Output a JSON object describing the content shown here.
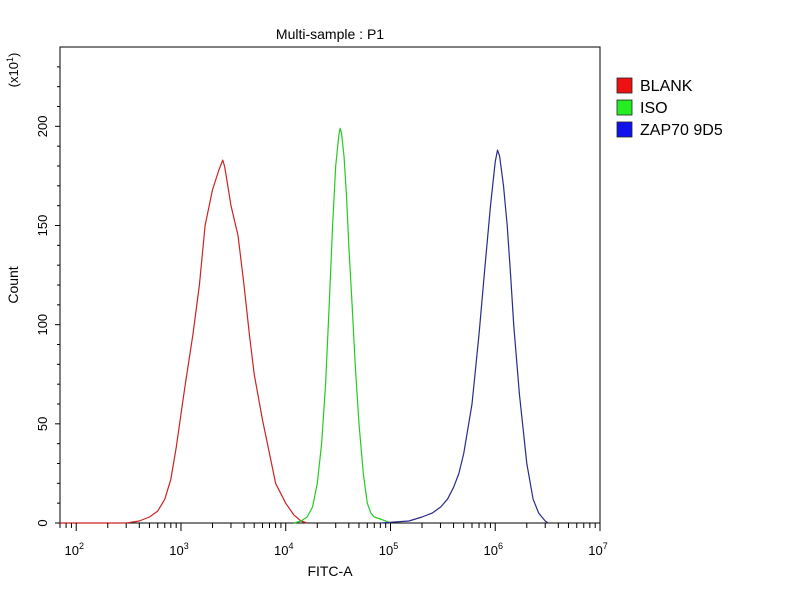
{
  "chart_data": {
    "type": "line",
    "title": "Multi-sample : P1",
    "xlabel": "FITC-A",
    "ylabel": "Count",
    "y_multiplier_label": "(x10",
    "y_multiplier_exp": "1",
    "y_multiplier_close": ")",
    "x_scale": "log",
    "xlim": [
      70,
      10000000
    ],
    "ylim": [
      0,
      240
    ],
    "x_ticks": [
      {
        "base": "10",
        "exp": "2",
        "value": 100
      },
      {
        "base": "10",
        "exp": "3",
        "value": 1000
      },
      {
        "base": "10",
        "exp": "4",
        "value": 10000
      },
      {
        "base": "10",
        "exp": "5",
        "value": 100000
      },
      {
        "base": "10",
        "exp": "6",
        "value": 1000000
      },
      {
        "base": "10",
        "exp": "7",
        "value": 10000000
      }
    ],
    "y_ticks": [
      "0",
      "50",
      "100",
      "150",
      "200"
    ],
    "y_tick_values": [
      0,
      50,
      100,
      150,
      200
    ],
    "grid": false,
    "legend_position": "right",
    "series": [
      {
        "name": "BLANK",
        "color": "#cc2222",
        "legend_color": "#ee1111",
        "x": [
          70,
          300,
          400,
          500,
          600,
          700,
          800,
          900,
          1000,
          1100,
          1300,
          1500,
          1700,
          2000,
          2300,
          2500,
          2600,
          2700,
          3000,
          3500,
          4000,
          4500,
          5000,
          6000,
          7000,
          8000,
          10000,
          12000,
          14000,
          16000
        ],
        "y": [
          0,
          0,
          1,
          3,
          6,
          12,
          22,
          38,
          55,
          70,
          95,
          120,
          150,
          168,
          178,
          183,
          180,
          175,
          160,
          145,
          120,
          95,
          75,
          52,
          35,
          20,
          10,
          4,
          1,
          0
        ]
      },
      {
        "name": "ISO",
        "color": "#22cc22",
        "legend_color": "#22ee22",
        "x": [
          12000,
          14000,
          16000,
          18000,
          20000,
          22000,
          24000,
          26000,
          28000,
          30000,
          32000,
          33000,
          34000,
          36000,
          38000,
          40000,
          43000,
          46000,
          50000,
          55000,
          60000,
          65000,
          70000,
          80000,
          90000,
          100000
        ],
        "y": [
          0,
          1,
          3,
          8,
          20,
          40,
          70,
          110,
          150,
          180,
          195,
          199,
          197,
          185,
          165,
          140,
          110,
          80,
          50,
          25,
          10,
          5,
          3,
          2,
          1,
          0
        ]
      },
      {
        "name": "ZAP70 9D5",
        "color": "#2a2a8a",
        "legend_color": "#1111ee",
        "x": [
          80000,
          150000,
          200000,
          250000,
          300000,
          350000,
          400000,
          450000,
          500000,
          600000,
          700000,
          800000,
          900000,
          1000000,
          1050000,
          1100000,
          1200000,
          1300000,
          1400000,
          1500000,
          1700000,
          2000000,
          2300000,
          2600000,
          3000000,
          3200000
        ],
        "y": [
          0,
          1,
          3,
          5,
          8,
          12,
          18,
          25,
          35,
          60,
          95,
          130,
          160,
          182,
          188,
          185,
          170,
          150,
          125,
          100,
          65,
          30,
          12,
          5,
          1,
          0
        ]
      }
    ]
  }
}
